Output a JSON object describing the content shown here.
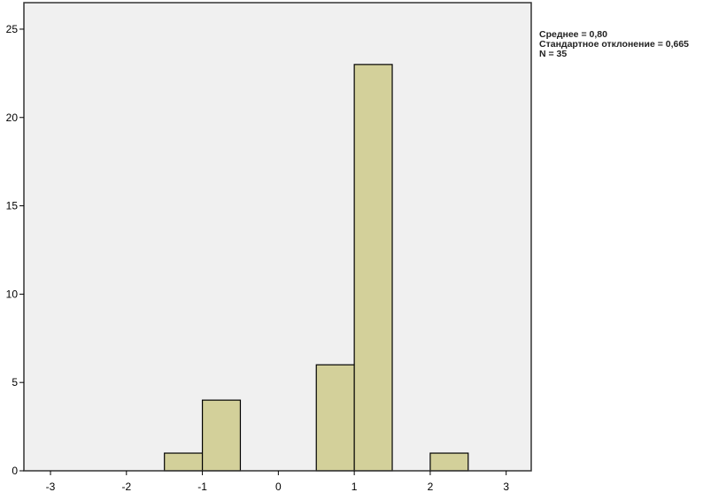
{
  "chart_data": {
    "type": "bar",
    "subtype": "histogram",
    "bins": [
      {
        "from": -1.5,
        "to": -1.0,
        "count": 1
      },
      {
        "from": -1.0,
        "to": -0.5,
        "count": 4
      },
      {
        "from": 0.5,
        "to": 1.0,
        "count": 6
      },
      {
        "from": 1.0,
        "to": 1.5,
        "count": 23
      },
      {
        "from": 2.0,
        "to": 2.5,
        "count": 1
      }
    ],
    "xticks": [
      "-3",
      "-2",
      "-1",
      "0",
      "1",
      "2",
      "3"
    ],
    "yticks": [
      "0",
      "5",
      "10",
      "15",
      "20",
      "25"
    ],
    "xlim": [
      -3.35,
      3.33
    ],
    "ylim": [
      0,
      26.5
    ],
    "grid": false,
    "colors": {
      "bar": "#d3d09a",
      "plot_bg": "#f0f0f0",
      "edge": "#000000"
    },
    "legend": {
      "placement": "right",
      "mean": "Среднее = 0,80",
      "std": "Стандартное отклонение = 0,665",
      "n": "N = 35"
    }
  }
}
